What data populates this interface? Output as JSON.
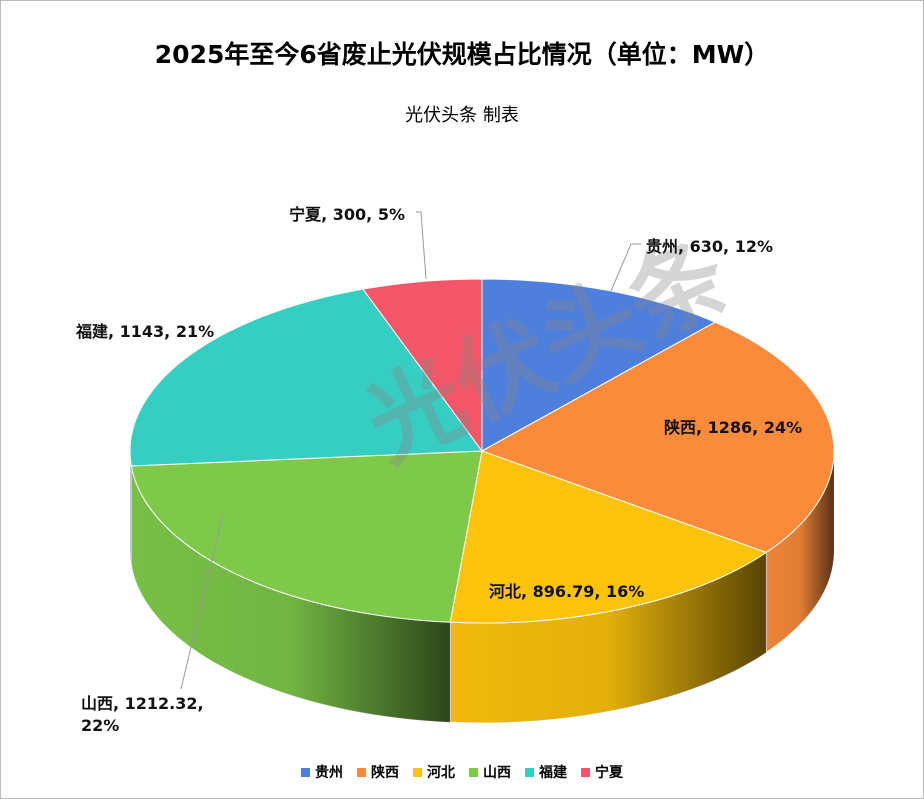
{
  "chart_data": {
    "type": "pie3d",
    "title": "2025年至今6省废止光伏规模占比情况（单位：MW）",
    "subtitle": "光伏头条 制表",
    "watermark": "光伏头条",
    "categories": [
      "贵州",
      "陕西",
      "河北",
      "山西",
      "福建",
      "宁夏"
    ],
    "values": [
      630,
      1286,
      896.79,
      1212.32,
      1143,
      300
    ],
    "value_labels": [
      "贵州, 630, 12%",
      "陕西, 1286, 24%",
      "河北, 896.79, 16%",
      "山西, 1212.32, 22%",
      "福建, 1143, 21%",
      "宁夏, 300, 5%"
    ],
    "colors": [
      "#4f7fdc",
      "#f98b3a",
      "#fcc30c",
      "#7ec94a",
      "#36cdc2",
      "#f25668"
    ],
    "legend": "bottom"
  }
}
